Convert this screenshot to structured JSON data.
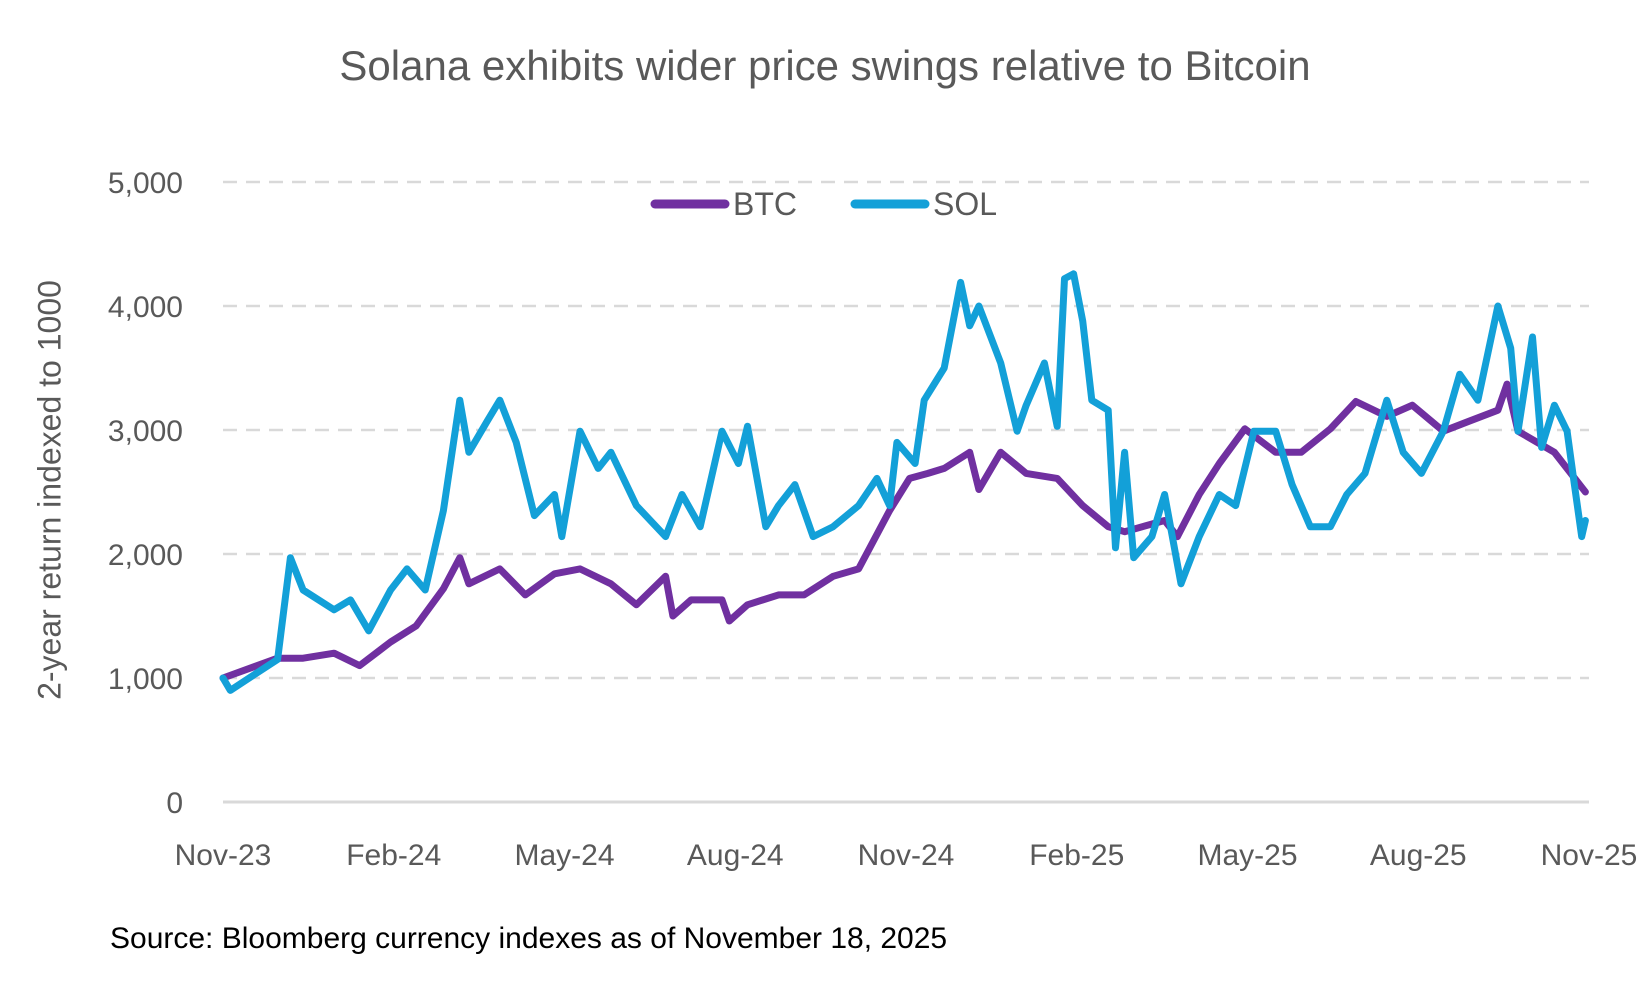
{
  "chart_data": {
    "type": "line",
    "title": "Solana exhibits wider price swings relative to Bitcoin",
    "ylabel": "2-year return indexed to 1000",
    "xlabel": "",
    "source": "Source: Bloomberg currency indexes as of November 18, 2025",
    "ylim": [
      0,
      5000
    ],
    "xlim": [
      "2023-11-01",
      "2025-11-20"
    ],
    "yticks": [
      "0",
      "1,000",
      "2,000",
      "3,000",
      "4,000",
      "5,000"
    ],
    "xticks": [
      "Nov-23",
      "Feb-24",
      "May-24",
      "Aug-24",
      "Nov-24",
      "Feb-25",
      "May-25",
      "Aug-25",
      "Nov-25"
    ],
    "grid": true,
    "legend": "top-center",
    "series": [
      {
        "name": "BTC",
        "color": "#7030A0",
        "points": [
          [
            "2023-11-01",
            1000
          ],
          [
            "2023-12-01",
            1160
          ],
          [
            "2023-12-15",
            1160
          ],
          [
            "2024-01-01",
            1200
          ],
          [
            "2024-01-15",
            1100
          ],
          [
            "2024-02-01",
            1290
          ],
          [
            "2024-02-15",
            1420
          ],
          [
            "2024-03-01",
            1720
          ],
          [
            "2024-03-10",
            1970
          ],
          [
            "2024-03-15",
            1760
          ],
          [
            "2024-04-01",
            1880
          ],
          [
            "2024-04-15",
            1670
          ],
          [
            "2024-05-01",
            1840
          ],
          [
            "2024-05-15",
            1880
          ],
          [
            "2024-06-01",
            1760
          ],
          [
            "2024-06-15",
            1590
          ],
          [
            "2024-07-01",
            1820
          ],
          [
            "2024-07-05",
            1500
          ],
          [
            "2024-07-15",
            1630
          ],
          [
            "2024-08-01",
            1630
          ],
          [
            "2024-08-05",
            1460
          ],
          [
            "2024-08-15",
            1590
          ],
          [
            "2024-09-01",
            1670
          ],
          [
            "2024-09-15",
            1670
          ],
          [
            "2024-10-01",
            1820
          ],
          [
            "2024-10-15",
            1880
          ],
          [
            "2024-11-01",
            2350
          ],
          [
            "2024-11-12",
            2610
          ],
          [
            "2024-11-22",
            2650
          ],
          [
            "2024-12-01",
            2690
          ],
          [
            "2024-12-15",
            2820
          ],
          [
            "2024-12-20",
            2520
          ],
          [
            "2025-01-01",
            2820
          ],
          [
            "2025-01-15",
            2650
          ],
          [
            "2025-02-01",
            2610
          ],
          [
            "2025-02-15",
            2390
          ],
          [
            "2025-03-01",
            2220
          ],
          [
            "2025-03-10",
            2180
          ],
          [
            "2025-04-01",
            2270
          ],
          [
            "2025-04-08",
            2140
          ],
          [
            "2025-04-20",
            2480
          ],
          [
            "2025-05-01",
            2730
          ],
          [
            "2025-05-15",
            3010
          ],
          [
            "2025-06-01",
            2820
          ],
          [
            "2025-06-15",
            2820
          ],
          [
            "2025-07-01",
            3010
          ],
          [
            "2025-07-15",
            3230
          ],
          [
            "2025-08-01",
            3110
          ],
          [
            "2025-08-15",
            3200
          ],
          [
            "2025-09-01",
            2990
          ],
          [
            "2025-09-15",
            3070
          ],
          [
            "2025-10-01",
            3160
          ],
          [
            "2025-10-06",
            3370
          ],
          [
            "2025-10-12",
            2990
          ],
          [
            "2025-11-01",
            2820
          ],
          [
            "2025-11-18",
            2500
          ]
        ]
      },
      {
        "name": "SOL",
        "color": "#13A0D8",
        "points": [
          [
            "2023-11-01",
            1000
          ],
          [
            "2023-11-05",
            900
          ],
          [
            "2023-12-01",
            1150
          ],
          [
            "2023-12-08",
            1970
          ],
          [
            "2023-12-15",
            1710
          ],
          [
            "2024-01-01",
            1550
          ],
          [
            "2024-01-10",
            1630
          ],
          [
            "2024-01-20",
            1380
          ],
          [
            "2024-02-01",
            1710
          ],
          [
            "2024-02-10",
            1880
          ],
          [
            "2024-02-20",
            1710
          ],
          [
            "2024-03-01",
            2350
          ],
          [
            "2024-03-10",
            3240
          ],
          [
            "2024-03-15",
            2820
          ],
          [
            "2024-03-25",
            3070
          ],
          [
            "2024-04-01",
            3240
          ],
          [
            "2024-04-10",
            2900
          ],
          [
            "2024-04-20",
            2310
          ],
          [
            "2024-05-01",
            2480
          ],
          [
            "2024-05-05",
            2140
          ],
          [
            "2024-05-15",
            2990
          ],
          [
            "2024-05-25",
            2690
          ],
          [
            "2024-06-01",
            2820
          ],
          [
            "2024-06-15",
            2390
          ],
          [
            "2024-07-01",
            2140
          ],
          [
            "2024-07-10",
            2480
          ],
          [
            "2024-07-20",
            2220
          ],
          [
            "2024-08-01",
            2990
          ],
          [
            "2024-08-10",
            2730
          ],
          [
            "2024-08-15",
            3030
          ],
          [
            "2024-08-25",
            2220
          ],
          [
            "2024-09-01",
            2390
          ],
          [
            "2024-09-10",
            2560
          ],
          [
            "2024-09-20",
            2140
          ],
          [
            "2024-10-01",
            2220
          ],
          [
            "2024-10-15",
            2390
          ],
          [
            "2024-10-25",
            2610
          ],
          [
            "2024-11-01",
            2390
          ],
          [
            "2024-11-05",
            2900
          ],
          [
            "2024-11-15",
            2730
          ],
          [
            "2024-11-20",
            3240
          ],
          [
            "2024-12-01",
            3500
          ],
          [
            "2024-12-10",
            4190
          ],
          [
            "2024-12-15",
            3840
          ],
          [
            "2024-12-20",
            4000
          ],
          [
            "2025-01-01",
            3540
          ],
          [
            "2025-01-10",
            2990
          ],
          [
            "2025-01-15",
            3200
          ],
          [
            "2025-01-25",
            3540
          ],
          [
            "2025-02-01",
            3030
          ],
          [
            "2025-02-05",
            4220
          ],
          [
            "2025-02-10",
            4260
          ],
          [
            "2025-02-15",
            3880
          ],
          [
            "2025-02-20",
            3240
          ],
          [
            "2025-03-01",
            3160
          ],
          [
            "2025-03-05",
            2050
          ],
          [
            "2025-03-10",
            2820
          ],
          [
            "2025-03-15",
            1970
          ],
          [
            "2025-03-25",
            2140
          ],
          [
            "2025-04-01",
            2480
          ],
          [
            "2025-04-10",
            1760
          ],
          [
            "2025-04-20",
            2140
          ],
          [
            "2025-05-01",
            2480
          ],
          [
            "2025-05-10",
            2390
          ],
          [
            "2025-05-20",
            2990
          ],
          [
            "2025-06-01",
            2990
          ],
          [
            "2025-06-10",
            2560
          ],
          [
            "2025-06-20",
            2220
          ],
          [
            "2025-07-01",
            2220
          ],
          [
            "2025-07-10",
            2480
          ],
          [
            "2025-07-20",
            2650
          ],
          [
            "2025-08-01",
            3240
          ],
          [
            "2025-08-10",
            2820
          ],
          [
            "2025-08-20",
            2650
          ],
          [
            "2025-09-01",
            2990
          ],
          [
            "2025-09-10",
            3450
          ],
          [
            "2025-09-20",
            3240
          ],
          [
            "2025-10-01",
            4000
          ],
          [
            "2025-10-08",
            3660
          ],
          [
            "2025-10-12",
            2990
          ],
          [
            "2025-10-20",
            3750
          ],
          [
            "2025-10-25",
            2860
          ],
          [
            "2025-11-01",
            3200
          ],
          [
            "2025-11-08",
            2990
          ],
          [
            "2025-11-12",
            2560
          ],
          [
            "2025-11-16",
            2140
          ],
          [
            "2025-11-18",
            2270
          ]
        ]
      }
    ]
  }
}
